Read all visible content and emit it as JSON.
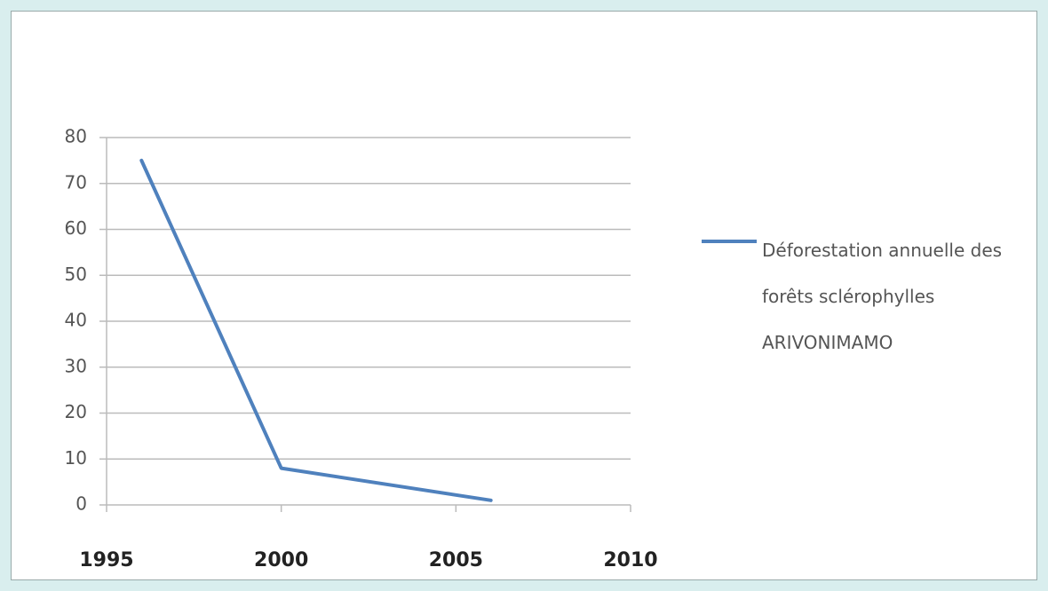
{
  "chart_data": {
    "type": "line",
    "x": [
      1996,
      2000,
      2006
    ],
    "series": [
      {
        "name": "Déforestation annuelle des forêts sclérophylles ARIVONIMAMO",
        "color": "#4f81bd",
        "values": [
          75,
          8,
          1
        ]
      }
    ],
    "xlim": [
      1995,
      2010
    ],
    "xticks": [
      1995,
      2000,
      2005,
      2010
    ],
    "ylim": [
      0,
      80
    ],
    "yticks": [
      0,
      10,
      20,
      30,
      40,
      50,
      60,
      70,
      80
    ],
    "grid": true,
    "legend": "right"
  }
}
